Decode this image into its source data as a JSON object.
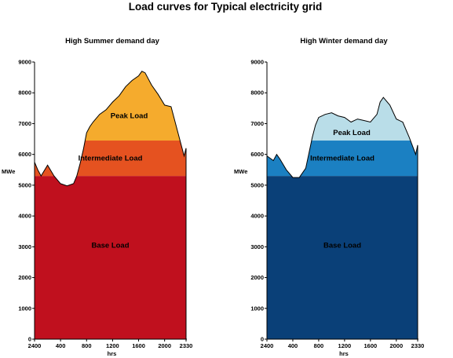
{
  "chart": {
    "title": "Load curves for Typical electricity grid"
  },
  "chart_data": [
    {
      "type": "area",
      "subtitle": "High Summer demand day",
      "xlabel": "hrs",
      "ylabel": "MWe",
      "ylim": [
        0,
        9000
      ],
      "y_ticks": [
        0,
        1000,
        2000,
        3000,
        4000,
        5000,
        6000,
        7000,
        8000,
        9000
      ],
      "x_tick_labels": [
        "2400",
        "400",
        "800",
        "1200",
        "1600",
        "2000",
        "2330"
      ],
      "x": [
        0,
        50,
        100,
        200,
        300,
        400,
        500,
        600,
        650,
        700,
        750,
        800,
        850,
        900,
        1000,
        1100,
        1200,
        1300,
        1400,
        1500,
        1600,
        1650,
        1700,
        1800,
        1900,
        2000,
        2100,
        2200,
        2300,
        2330
      ],
      "total_load": [
        5750,
        5500,
        5300,
        5650,
        5300,
        5050,
        4980,
        5050,
        5300,
        5700,
        6150,
        6700,
        6900,
        7050,
        7300,
        7450,
        7700,
        7900,
        8200,
        8400,
        8550,
        8700,
        8650,
        8250,
        7950,
        7600,
        7550,
        6750,
        5950,
        6200
      ],
      "bands": [
        {
          "name": "Base Load",
          "lower": 0,
          "upper": 5300,
          "color": "#c0101e"
        },
        {
          "name": "Intermediate Load",
          "lower": 5300,
          "upper": 6450,
          "color": "#e55220"
        },
        {
          "name": "Peak Load",
          "lower": 6450,
          "upper": null,
          "color": "#f5ab2d"
        }
      ]
    },
    {
      "type": "area",
      "subtitle": "High Winter demand day",
      "xlabel": "hrs",
      "ylabel": "MWe",
      "ylim": [
        0,
        9000
      ],
      "y_ticks": [
        0,
        1000,
        2000,
        3000,
        4000,
        5000,
        6000,
        7000,
        8000,
        9000
      ],
      "x_tick_labels": [
        "2400",
        "400",
        "800",
        "1200",
        "1600",
        "2000",
        "2330"
      ],
      "x": [
        0,
        100,
        150,
        200,
        300,
        400,
        500,
        600,
        650,
        700,
        750,
        800,
        900,
        1000,
        1100,
        1200,
        1300,
        1400,
        1500,
        1600,
        1700,
        1750,
        1800,
        1900,
        2000,
        2100,
        2200,
        2300,
        2330
      ],
      "total_load": [
        5950,
        5800,
        6000,
        5850,
        5500,
        5250,
        5250,
        5550,
        6050,
        6550,
        6950,
        7200,
        7300,
        7350,
        7250,
        7200,
        7050,
        7150,
        7100,
        7050,
        7300,
        7700,
        7850,
        7600,
        7150,
        7050,
        6550,
        6000,
        6300
      ],
      "bands": [
        {
          "name": "Base Load",
          "lower": 0,
          "upper": 5300,
          "color": "#0a4078"
        },
        {
          "name": "Intermediate Load",
          "lower": 5300,
          "upper": 6450,
          "color": "#1b80c2"
        },
        {
          "name": "Peak Load",
          "lower": 6450,
          "upper": null,
          "color": "#b9dde8"
        }
      ]
    }
  ]
}
